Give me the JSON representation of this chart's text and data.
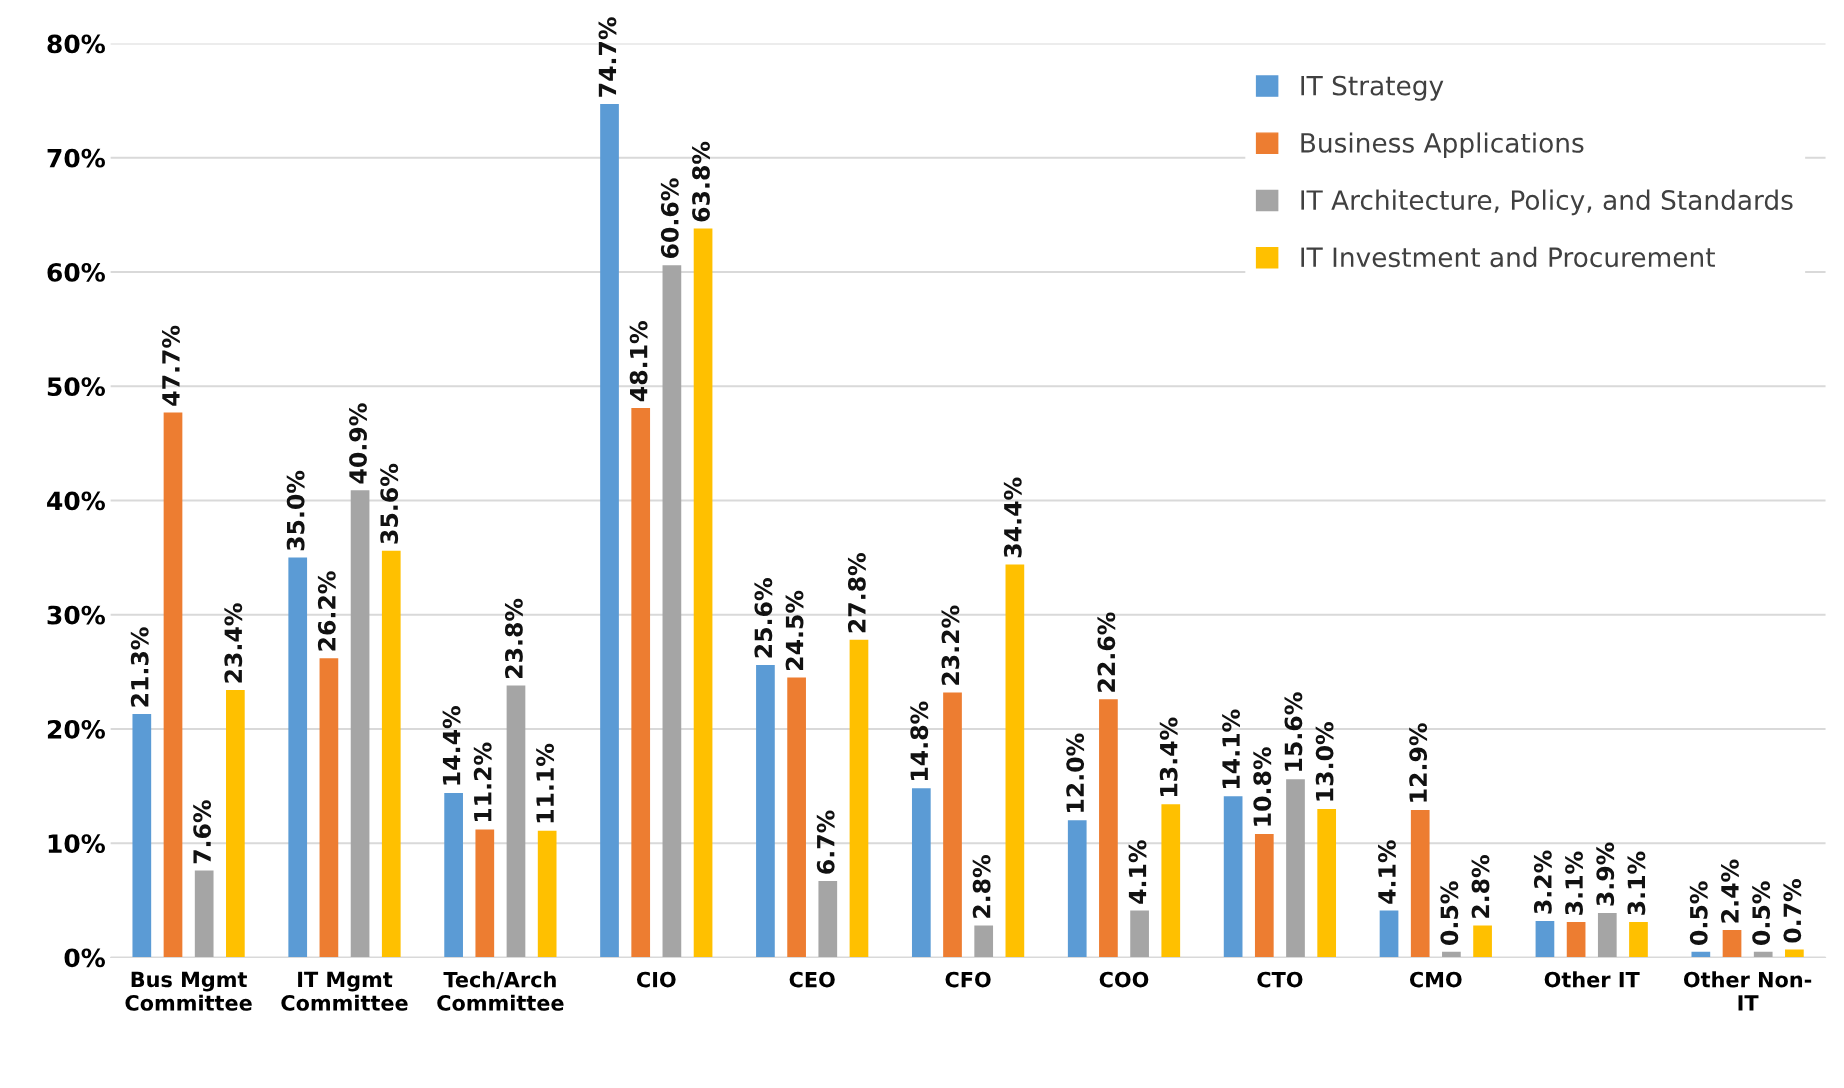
{
  "chart_data": {
    "type": "bar",
    "categories": [
      "Bus Mgmt\nCommittee",
      "IT Mgmt\nCommittee",
      "Tech/Arch\nCommittee",
      "CIO",
      "CEO",
      "CFO",
      "COO",
      "CTO",
      "CMO",
      "Other IT",
      "Other Non-\nIT"
    ],
    "series": [
      {
        "name": "IT Strategy",
        "color": "#5b9bd5",
        "values": [
          21.3,
          35.0,
          14.4,
          74.7,
          25.6,
          14.8,
          12.0,
          14.1,
          4.1,
          3.2,
          0.5
        ],
        "value_labels": [
          "21.3%",
          "35.0%",
          "14.4%",
          "74.7%",
          "25.6%",
          "14.8%",
          "12.0%",
          "14.1%",
          "4.1%",
          "3.2%",
          "0.5%"
        ]
      },
      {
        "name": "Business Applications",
        "color": "#ed7d31",
        "values": [
          47.7,
          26.2,
          11.2,
          48.1,
          24.5,
          23.2,
          22.6,
          10.8,
          12.9,
          3.1,
          2.4
        ],
        "value_labels": [
          "47.7%",
          "26.2%",
          "11.2%",
          "48.1%",
          "24.5%",
          "23.2%",
          "22.6%",
          "10.8%",
          "12.9%",
          "3.1%",
          "2.4%"
        ]
      },
      {
        "name": "IT Architecture, Policy, and Standards",
        "color": "#a5a5a5",
        "values": [
          7.6,
          40.9,
          23.8,
          60.6,
          6.7,
          2.8,
          4.1,
          15.6,
          0.5,
          3.9,
          0.5
        ],
        "value_labels": [
          "7.6%",
          "40.9%",
          "23.8%",
          "60.6%",
          "6.7%",
          "2.8%",
          "4.1%",
          "15.6%",
          "0.5%",
          "3.9%",
          "0.5%"
        ]
      },
      {
        "name": "IT Investment and Procurement",
        "color": "#ffc000",
        "values": [
          23.4,
          35.6,
          11.1,
          63.8,
          27.8,
          34.4,
          13.4,
          13.0,
          2.8,
          3.1,
          0.7
        ],
        "value_labels": [
          "23.4%",
          "35.6%",
          "11.1%",
          "63.8%",
          "27.8%",
          "34.4%",
          "13.4%",
          "13.0%",
          "2.8%",
          "3.1%",
          "0.7%"
        ]
      }
    ],
    "ylim": [
      0,
      80
    ],
    "yticks": [
      {
        "value": 0,
        "label": "0%"
      },
      {
        "value": 10,
        "label": "10%"
      },
      {
        "value": 20,
        "label": "20%"
      },
      {
        "value": 30,
        "label": "30%"
      },
      {
        "value": 40,
        "label": "40%"
      },
      {
        "value": 50,
        "label": "50%"
      },
      {
        "value": 60,
        "label": "60%"
      },
      {
        "value": 70,
        "label": "70%"
      },
      {
        "value": 80,
        "label": "80%"
      }
    ],
    "grid": "y",
    "legend": "top right"
  }
}
